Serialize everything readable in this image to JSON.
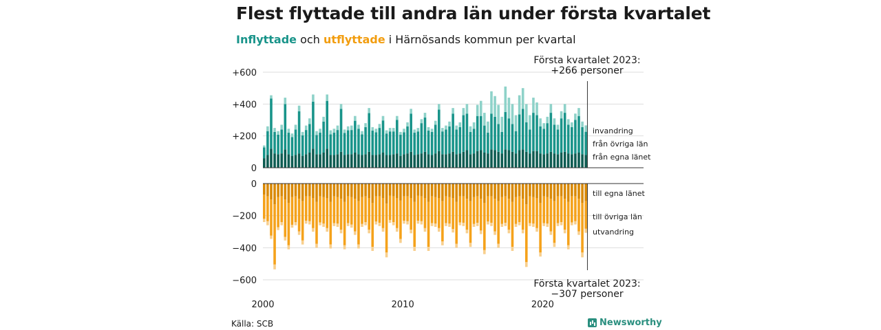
{
  "title": "Flest flyttade till andra län under första kvartalet",
  "subtitle": {
    "part_in": "Inflyttade",
    "part_and": " och ",
    "part_out": "utflyttade",
    "part_rest": " i Härnösands kommun per kvartal"
  },
  "source": "Källa: SCB",
  "brand": "Newsworthy",
  "colors": {
    "in_own_county": "#0e5c52",
    "in_other_counties": "#19948a",
    "in_immigration": "#8ed2c9",
    "out_own_county": "#d98905",
    "out_other_counties": "#f5a21b",
    "out_emigration": "#f8cf8d",
    "grid": "#dddddd"
  },
  "annotations": {
    "top_line1": "Första kvartalet 2023:",
    "top_line2": "+266 personer",
    "bottom_line1": "Första kvartalet 2023:",
    "bottom_line2": "−307 personer"
  },
  "chart_data": {
    "type": "bar",
    "stacked": true,
    "diverging": true,
    "x_start_year": 2000,
    "periods_per_year": 4,
    "n_periods": 93,
    "x_ticks": [
      "2000",
      "2010",
      "2020"
    ],
    "y_ticks_top": [
      "+600",
      "+400",
      "+200",
      "0"
    ],
    "y_ticks_bottom": [
      "0",
      "−200",
      "−400",
      "−600"
    ],
    "ylim_top": [
      0,
      600
    ],
    "ylim_bottom": [
      -600,
      0
    ],
    "grid": true,
    "series_labels_in": [
      "invandring",
      "från övriga län",
      "från egna länet"
    ],
    "series_labels_out": [
      "till egna länet",
      "till övriga län",
      "utvandring"
    ],
    "inflow_total": [
      140,
      260,
      455,
      250,
      230,
      270,
      440,
      245,
      215,
      270,
      390,
      225,
      265,
      310,
      460,
      230,
      245,
      320,
      460,
      235,
      245,
      265,
      400,
      240,
      260,
      265,
      325,
      270,
      230,
      280,
      375,
      255,
      245,
      275,
      325,
      235,
      250,
      250,
      325,
      225,
      245,
      285,
      370,
      240,
      250,
      305,
      345,
      255,
      245,
      295,
      400,
      250,
      265,
      290,
      375,
      265,
      285,
      375,
      400,
      260,
      285,
      395,
      420,
      345,
      290,
      480,
      450,
      395,
      320,
      510,
      440,
      400,
      330,
      455,
      500,
      400,
      330,
      440,
      410,
      310,
      280,
      320,
      400,
      310,
      270,
      355,
      400,
      305,
      285,
      340,
      375,
      290,
      266
    ],
    "inflow_local": [
      60,
      80,
      120,
      90,
      85,
      90,
      115,
      85,
      75,
      80,
      90,
      75,
      85,
      95,
      120,
      85,
      85,
      95,
      120,
      80,
      80,
      85,
      100,
      80,
      85,
      85,
      95,
      85,
      80,
      85,
      100,
      80,
      80,
      85,
      95,
      80,
      80,
      85,
      90,
      75,
      85,
      90,
      100,
      80,
      85,
      90,
      100,
      85,
      80,
      90,
      105,
      85,
      85,
      90,
      100,
      85,
      90,
      100,
      110,
      85,
      90,
      105,
      110,
      95,
      90,
      115,
      110,
      100,
      90,
      115,
      110,
      100,
      90,
      110,
      115,
      100,
      90,
      105,
      105,
      90,
      85,
      90,
      100,
      90,
      85,
      95,
      100,
      90,
      85,
      90,
      95,
      85,
      80
    ],
    "inflow_immigration": [
      12,
      30,
      20,
      25,
      22,
      30,
      40,
      25,
      22,
      30,
      35,
      22,
      28,
      35,
      45,
      25,
      25,
      30,
      40,
      25,
      25,
      28,
      30,
      22,
      25,
      28,
      30,
      25,
      20,
      25,
      32,
      22,
      22,
      25,
      28,
      20,
      22,
      22,
      25,
      18,
      22,
      25,
      30,
      20,
      22,
      25,
      30,
      22,
      20,
      25,
      35,
      22,
      25,
      30,
      35,
      25,
      30,
      45,
      60,
      35,
      40,
      70,
      95,
      80,
      70,
      140,
      130,
      120,
      95,
      160,
      130,
      125,
      100,
      120,
      130,
      115,
      90,
      95,
      80,
      50,
      35,
      40,
      55,
      40,
      30,
      45,
      55,
      35,
      30,
      40,
      50,
      35,
      40
    ],
    "outflow_total": [
      -240,
      -260,
      -345,
      -535,
      -290,
      -260,
      -355,
      -410,
      -275,
      -260,
      -320,
      -380,
      -250,
      -255,
      -300,
      -400,
      -260,
      -270,
      -300,
      -405,
      -265,
      -270,
      -310,
      -410,
      -265,
      -275,
      -320,
      -405,
      -270,
      -260,
      -310,
      -420,
      -255,
      -265,
      -300,
      -460,
      -245,
      -260,
      -300,
      -370,
      -250,
      -255,
      -310,
      -420,
      -250,
      -255,
      -300,
      -420,
      -265,
      -270,
      -300,
      -385,
      -265,
      -270,
      -305,
      -400,
      -260,
      -265,
      -310,
      -395,
      -270,
      -265,
      -315,
      -440,
      -255,
      -265,
      -320,
      -400,
      -270,
      -265,
      -310,
      -420,
      -270,
      -260,
      -310,
      -520,
      -265,
      -270,
      -300,
      -455,
      -265,
      -270,
      -320,
      -395,
      -265,
      -260,
      -310,
      -410,
      -260,
      -255,
      -320,
      -460,
      -307
    ],
    "outflow_local": [
      -70,
      -80,
      -100,
      -130,
      -85,
      -80,
      -100,
      -120,
      -85,
      -80,
      -95,
      -110,
      -80,
      -80,
      -90,
      -115,
      -80,
      -85,
      -90,
      -115,
      -80,
      -85,
      -95,
      -115,
      -80,
      -85,
      -95,
      -110,
      -85,
      -80,
      -90,
      -120,
      -80,
      -80,
      -90,
      -125,
      -75,
      -80,
      -90,
      -105,
      -80,
      -80,
      -90,
      -115,
      -75,
      -80,
      -90,
      -115,
      -80,
      -85,
      -90,
      -110,
      -80,
      -85,
      -90,
      -115,
      -80,
      -80,
      -95,
      -110,
      -85,
      -80,
      -95,
      -120,
      -80,
      -80,
      -95,
      -110,
      -85,
      -80,
      -95,
      -115,
      -85,
      -80,
      -95,
      -130,
      -80,
      -85,
      -90,
      -120,
      -80,
      -85,
      -95,
      -110,
      -80,
      -80,
      -95,
      -115,
      -80,
      -80,
      -95,
      -120,
      -110
    ],
    "outflow_emigration": [
      -20,
      -25,
      -20,
      -30,
      -18,
      -20,
      -22,
      -25,
      -18,
      -20,
      -22,
      -25,
      -18,
      -20,
      -22,
      -25,
      -18,
      -20,
      -22,
      -25,
      -18,
      -20,
      -22,
      -25,
      -18,
      -20,
      -22,
      -25,
      -18,
      -20,
      -22,
      -25,
      -18,
      -20,
      -22,
      -30,
      -18,
      -20,
      -22,
      -25,
      -18,
      -20,
      -22,
      -25,
      -18,
      -20,
      -22,
      -25,
      -18,
      -20,
      -22,
      -25,
      -18,
      -20,
      -22,
      -25,
      -18,
      -20,
      -22,
      -25,
      -18,
      -20,
      -22,
      -25,
      -18,
      -20,
      -22,
      -25,
      -18,
      -20,
      -22,
      -25,
      -18,
      -20,
      -22,
      -30,
      -18,
      -20,
      -22,
      -25,
      -18,
      -20,
      -22,
      -25,
      -18,
      -20,
      -22,
      -25,
      -18,
      -20,
      -22,
      -30,
      -25
    ]
  }
}
